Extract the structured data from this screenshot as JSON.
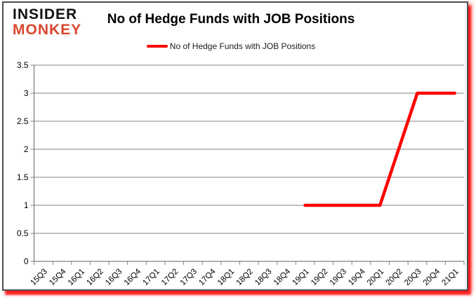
{
  "logo": {
    "line1": "INSIDER",
    "line2": "MONKEY",
    "color": "#d9472e"
  },
  "header": {
    "title": "No of Hedge Funds with JOB Positions"
  },
  "legend": {
    "label": "No of Hedge Funds with JOB Positions",
    "line_color": "#fe0000",
    "position": "top"
  },
  "chart_data": {
    "type": "line",
    "title": "No of Hedge Funds with JOB Positions",
    "xlabel": "",
    "ylabel": "",
    "categories": [
      "15Q3",
      "15Q4",
      "16Q1",
      "16Q2",
      "16Q3",
      "16Q4",
      "17Q1",
      "17Q2",
      "17Q3",
      "17Q4",
      "18Q1",
      "18Q2",
      "18Q3",
      "18Q4",
      "19Q1",
      "19Q2",
      "19Q3",
      "19Q4",
      "20Q1",
      "20Q2",
      "20Q3",
      "20Q4",
      "21Q1"
    ],
    "series": [
      {
        "name": "No of Hedge Funds with JOB Positions",
        "color": "#fe0000",
        "values": [
          null,
          null,
          null,
          null,
          null,
          null,
          null,
          null,
          null,
          null,
          null,
          null,
          null,
          null,
          1,
          1,
          1,
          1,
          1,
          2,
          3,
          3,
          3
        ]
      }
    ],
    "ylim": [
      0,
      3.5
    ],
    "yticks": [
      0,
      0.5,
      1,
      1.5,
      2,
      2.5,
      3,
      3.5
    ],
    "grid": true,
    "axis_color": "#808080",
    "tick_label_color": "#000000",
    "legend_position": "top"
  }
}
